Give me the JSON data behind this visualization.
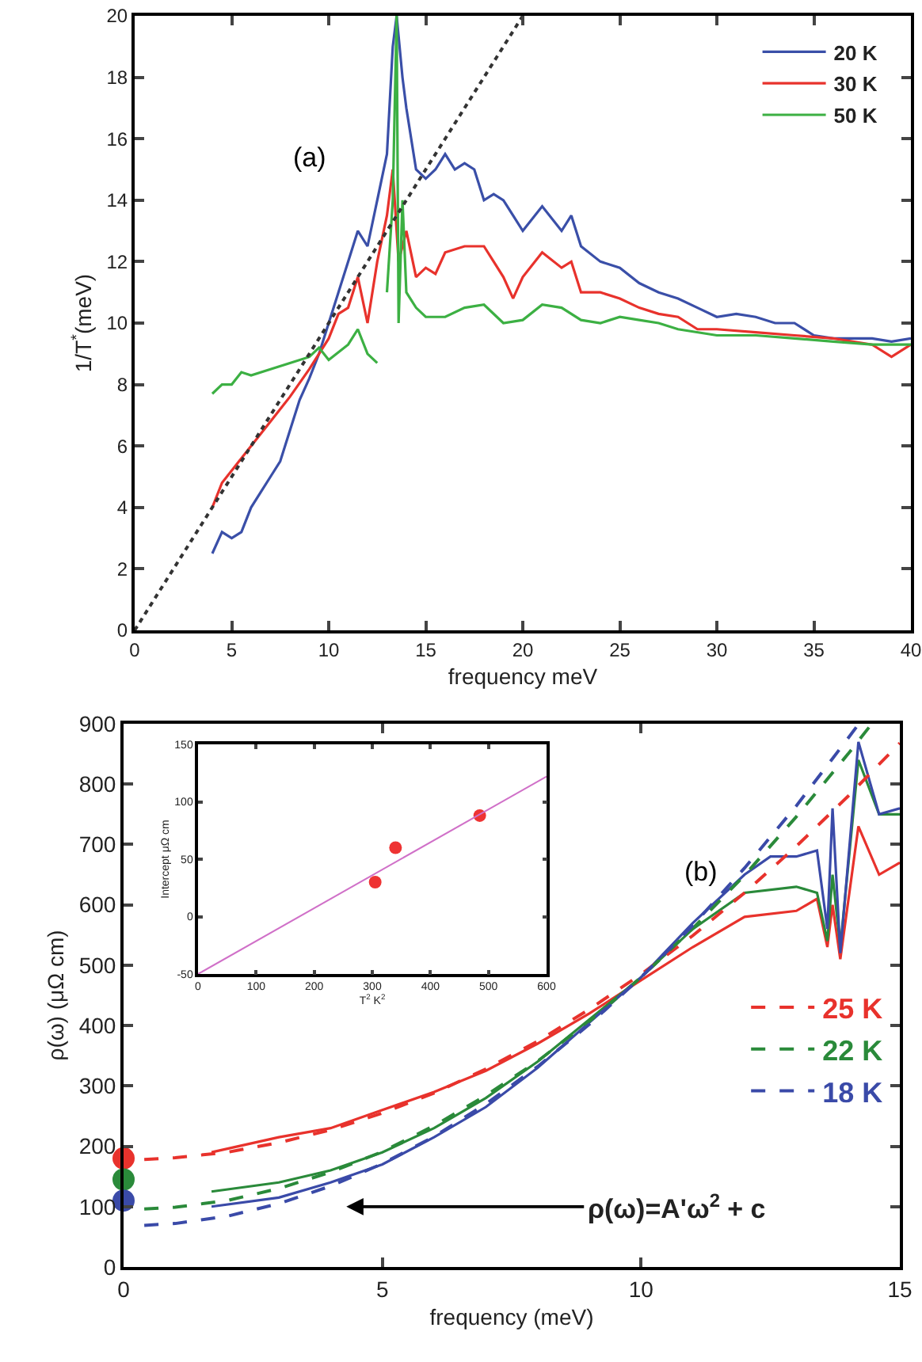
{
  "chart_data": [
    {
      "type": "line",
      "xlabel": "frequency meV",
      "ylabel": "1/T$^{*}$(meV)",
      "xlim": [
        0,
        40
      ],
      "ylim": [
        0,
        20
      ],
      "xticks": [
        0,
        5,
        10,
        15,
        20,
        25,
        30,
        35,
        40
      ],
      "yticks": [
        0,
        2,
        4,
        6,
        8,
        10,
        12,
        14,
        16,
        18,
        20
      ],
      "legend": "top right",
      "grid": false,
      "annotations": [
        "(a)"
      ],
      "series": [
        {
          "name": "20 K",
          "color": "#3a4fa8",
          "line_style": "solid",
          "x": [
            4,
            4.5,
            5,
            5.5,
            6,
            6.5,
            7,
            7.5,
            8,
            8.5,
            9,
            9.5,
            10,
            10.5,
            11,
            11.5,
            12,
            12.5,
            13,
            13.3,
            13.5,
            13.8,
            14,
            14.5,
            15,
            15.5,
            16,
            16.5,
            17,
            17.5,
            18,
            18.5,
            19,
            19.5,
            20,
            21,
            22,
            22.5,
            23,
            24,
            25,
            26,
            27,
            28,
            29,
            30,
            31,
            32,
            33,
            34,
            35,
            36,
            37,
            38,
            39,
            40
          ],
          "values": [
            2.5,
            3.2,
            3,
            3.2,
            4,
            4.5,
            5,
            5.5,
            6.5,
            7.5,
            8.2,
            9,
            10,
            11,
            12,
            13,
            12.5,
            14,
            15.5,
            19,
            20,
            18,
            17,
            15,
            14.7,
            15,
            15.5,
            15,
            15.2,
            15,
            14,
            14.2,
            14,
            13.5,
            13,
            13.8,
            13,
            13.5,
            12.5,
            12,
            11.8,
            11.3,
            11,
            10.8,
            10.5,
            10.2,
            10.3,
            10.2,
            10,
            10,
            9.6,
            9.5,
            9.5,
            9.5,
            9.4,
            9.5
          ]
        },
        {
          "name": "30 K",
          "color": "#e8322c",
          "line_style": "solid",
          "x": [
            4,
            4.5,
            5,
            6,
            7,
            8,
            9,
            10,
            10.5,
            11,
            11.5,
            12,
            12.5,
            13,
            13.3,
            13.6,
            14,
            14.5,
            15,
            15.5,
            16,
            17,
            18,
            18.5,
            19,
            19.5,
            20,
            21,
            22,
            22.5,
            23,
            24,
            25,
            26,
            27,
            28,
            29,
            30,
            32,
            34,
            36,
            38,
            39,
            40
          ],
          "values": [
            4,
            4.8,
            5.2,
            6,
            6.8,
            7.6,
            8.5,
            9.5,
            10.3,
            10.5,
            11.5,
            10,
            12,
            13.5,
            15,
            12,
            13,
            11.5,
            11.8,
            11.6,
            12.3,
            12.5,
            12.5,
            12,
            11.5,
            10.8,
            11.5,
            12.3,
            11.8,
            12,
            11,
            11,
            10.8,
            10.5,
            10.3,
            10.2,
            9.8,
            9.8,
            9.7,
            9.6,
            9.5,
            9.3,
            8.9,
            9.3
          ]
        },
        {
          "name": "50 K",
          "color": "#3cb043",
          "line_style": "solid",
          "x": [
            4,
            4.5,
            5,
            5.5,
            6,
            7,
            8,
            9,
            9.5,
            10,
            11,
            11.5,
            12,
            12.5,
            12.8,
            13,
            13.3,
            13.5,
            13.6,
            13.8,
            14,
            14.5,
            15,
            16,
            17,
            18,
            19,
            20,
            21,
            22,
            23,
            24,
            25,
            26,
            27,
            28,
            30,
            32,
            34,
            36,
            38,
            40
          ],
          "values": [
            7.7,
            8,
            8,
            8.4,
            8.3,
            8.5,
            8.7,
            8.9,
            9.2,
            8.8,
            9.3,
            9.8,
            9,
            8.7,
            null,
            11,
            14,
            20,
            10,
            14,
            11,
            10.5,
            10.2,
            10.2,
            10.5,
            10.6,
            10,
            10.1,
            10.6,
            10.5,
            10.1,
            10,
            10.2,
            10.1,
            10,
            9.8,
            9.6,
            9.6,
            9.5,
            9.4,
            9.3,
            9.3
          ]
        },
        {
          "color": "#333333",
          "line_style": "dotted",
          "x": [
            0,
            20
          ],
          "values": [
            0,
            20
          ]
        }
      ]
    },
    {
      "type": "line",
      "xlabel": "frequency (meV)",
      "ylabel": "ρ(ω) (μΩ cm)",
      "xlim": [
        0,
        15
      ],
      "ylim": [
        0,
        900
      ],
      "xticks": [
        0,
        5,
        10,
        15
      ],
      "yticks": [
        0,
        100,
        200,
        300,
        400,
        500,
        600,
        700,
        800,
        900
      ],
      "legend": "right",
      "grid": false,
      "annotations": [
        "(b)",
        "ρ(ω)=A'ω$^{2}$ + c"
      ],
      "series": [
        {
          "color": "#e8322c",
          "line_style": "solid",
          "x": [
            1.7,
            3,
            4,
            5,
            6,
            7,
            8,
            9,
            10,
            11,
            12,
            13,
            13.4,
            13.6,
            13.7,
            13.85,
            14.2,
            14.6,
            15
          ],
          "values": [
            190,
            215,
            230,
            260,
            290,
            325,
            370,
            420,
            475,
            530,
            580,
            590,
            610,
            530,
            600,
            510,
            730,
            650,
            670
          ]
        },
        {
          "color": "#2a8a3a",
          "line_style": "solid",
          "x": [
            1.7,
            3,
            4,
            5,
            6,
            7,
            8,
            9,
            10,
            11,
            12,
            13,
            13.4,
            13.6,
            13.7,
            13.85,
            14.2,
            14.6,
            15
          ],
          "values": [
            125,
            140,
            160,
            190,
            230,
            280,
            340,
            410,
            480,
            560,
            620,
            630,
            620,
            540,
            650,
            530,
            840,
            750,
            750
          ]
        },
        {
          "color": "#3a4aa8",
          "line_style": "solid",
          "x": [
            1.7,
            3,
            4,
            5,
            6,
            7,
            8,
            9,
            10,
            11,
            12,
            12.5,
            13,
            13.4,
            13.6,
            13.7,
            13.85,
            14.2,
            14.6,
            15
          ],
          "values": [
            100,
            115,
            140,
            170,
            215,
            265,
            330,
            405,
            480,
            570,
            650,
            680,
            680,
            690,
            560,
            760,
            520,
            870,
            750,
            760
          ]
        },
        {
          "name": "25 K",
          "color": "#e8322c",
          "line_style": "dashed",
          "x": [
            0.4,
            1,
            2,
            3,
            4,
            5,
            6,
            7,
            8,
            9,
            10,
            11,
            12,
            13,
            14,
            15
          ],
          "values": [
            178,
            181,
            190,
            206,
            227,
            255,
            288,
            328,
            374,
            427,
            485,
            549,
            620,
            697,
            780,
            868
          ]
        },
        {
          "name": "22 K",
          "color": "#2a8a3a",
          "line_style": "dashed",
          "x": [
            0.4,
            1,
            2,
            3,
            4,
            5,
            6,
            7,
            8,
            9,
            10,
            11,
            12,
            13,
            14,
            14.45
          ],
          "values": [
            96,
            99,
            110,
            130,
            157,
            191,
            234,
            284,
            341,
            407,
            480,
            561,
            649,
            746,
            850,
            899
          ]
        },
        {
          "name": "18 K",
          "color": "#3a4aa8",
          "line_style": "dashed",
          "x": [
            0.4,
            1,
            2,
            3,
            4,
            5,
            6,
            7,
            8,
            9,
            10,
            11,
            12,
            13,
            14,
            14.2
          ],
          "values": [
            69,
            72,
            84,
            105,
            134,
            171,
            216,
            270,
            332,
            402,
            480,
            566,
            661,
            764,
            876,
            899
          ]
        },
        {
          "type": "scatter",
          "marker": "circle",
          "color": "#e8322c",
          "x": [
            0
          ],
          "values": [
            180
          ]
        },
        {
          "type": "scatter",
          "marker": "circle",
          "color": "#2a8a3a",
          "x": [
            0
          ],
          "values": [
            145
          ]
        },
        {
          "type": "scatter",
          "marker": "circle",
          "color": "#3a4aa8",
          "x": [
            0
          ],
          "values": [
            110
          ]
        }
      ]
    },
    {
      "type": "scatter",
      "xlabel": "T$^{2}$ K$^{2}$",
      "ylabel": "Intercept μΩ cm",
      "xlim": [
        0,
        600
      ],
      "ylim": [
        -50,
        150
      ],
      "xticks": [
        0,
        100,
        200,
        300,
        400,
        500,
        600
      ],
      "yticks": [
        -50,
        0,
        50,
        100,
        150
      ],
      "grid": false,
      "marker": "circle",
      "series": [
        {
          "color": "#ee3333",
          "x": [
            305,
            340,
            485
          ],
          "values": [
            30,
            60,
            88
          ]
        },
        {
          "type": "line",
          "marker": "none",
          "color": "#d070c8",
          "line_style": "solid",
          "x": [
            0,
            600
          ],
          "values": [
            -50,
            122
          ]
        }
      ]
    }
  ]
}
